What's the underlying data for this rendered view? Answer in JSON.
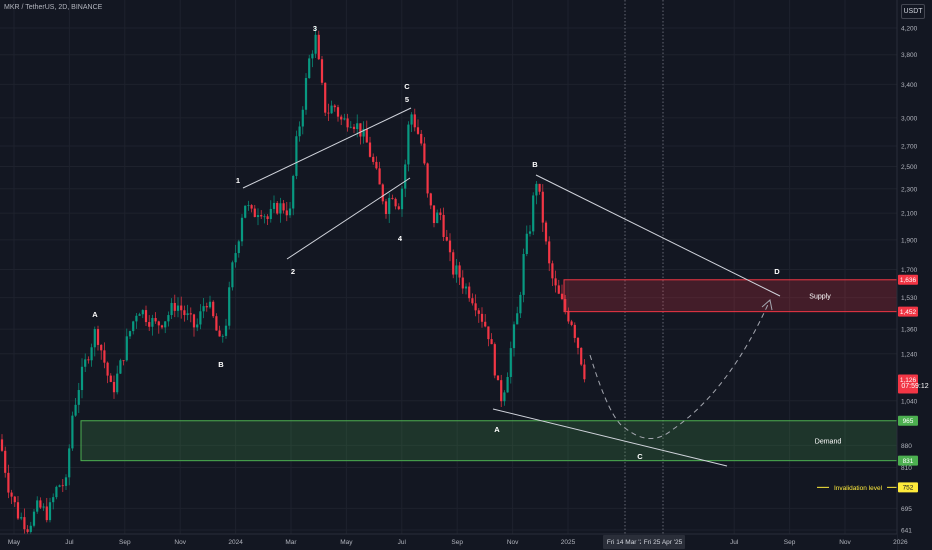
{
  "header": {
    "symbol_info": "MKR / TetherUS, 2D, BINANCE",
    "currency": "USDT"
  },
  "price_axis": {
    "ticks": [
      "4,200",
      "3,800",
      "3,400",
      "3,000",
      "2,700",
      "2,500",
      "2,300",
      "2,100",
      "1,900",
      "1,700",
      "1,530",
      "1,360",
      "1,240",
      "1,040",
      "880",
      "810",
      "695",
      "641"
    ],
    "tick_values": [
      4200,
      3800,
      3400,
      3000,
      2700,
      2500,
      2300,
      2100,
      1900,
      1700,
      1530,
      1360,
      1240,
      1040,
      880,
      810,
      695,
      641
    ],
    "badges": [
      {
        "label": "1,636",
        "value": 1636,
        "color": "#f23645",
        "text_color": "#ffffff"
      },
      {
        "label": "1,452",
        "value": 1452,
        "color": "#f23645",
        "text_color": "#ffffff"
      },
      {
        "label": "1,126",
        "value": 1126,
        "color": "#f23645",
        "text_color": "#ffffff"
      },
      {
        "label": "965",
        "value": 965,
        "color": "#4caf50",
        "text_color": "#ffffff"
      },
      {
        "label": "831",
        "value": 831,
        "color": "#4caf50",
        "text_color": "#ffffff"
      },
      {
        "label": "752",
        "value": 752,
        "color": "#ffeb3b",
        "text_color": "#131722"
      }
    ],
    "countdown": "07:59:12"
  },
  "time_axis": {
    "labels": [
      "May",
      "Jul",
      "Sep",
      "Nov",
      "2024",
      "Mar",
      "May",
      "Jul",
      "Sep",
      "Nov",
      "2025",
      "Jul",
      "Sep",
      "Nov",
      "2026"
    ],
    "highlighted": [
      "Fri 14 Mar '2",
      "Fri 25 Apr '25"
    ]
  },
  "zones": {
    "supply": {
      "label": "Supply",
      "top": 1636,
      "bottom": 1452,
      "color": "#f23645"
    },
    "demand": {
      "label": "Demand",
      "top": 965,
      "bottom": 831,
      "color": "#4caf50"
    },
    "invalidation": {
      "label": "Invalidation level",
      "value": 752,
      "color": "#ffeb3b"
    }
  },
  "wave_labels": {
    "A_first": "A",
    "B_first": "B",
    "w1": "1",
    "w2": "2",
    "w3": "3",
    "w4": "4",
    "w5": "5",
    "C_top": "C",
    "A_second": "A",
    "B_second": "B",
    "C_projected": "C",
    "D_projected": "D"
  },
  "chart_data": {
    "type": "candlestick",
    "symbol": "MKR / TetherUS",
    "interval": "2D",
    "exchange": "BINANCE",
    "y_scale": "log",
    "ylim": [
      641,
      4200
    ],
    "last_price": 1126,
    "key_points": [
      {
        "label": "A",
        "date": "2023-08",
        "price": 1350
      },
      {
        "label": "B",
        "date": "2023-12",
        "price": 1280
      },
      {
        "label": "1",
        "date": "2024-01",
        "price": 2250
      },
      {
        "label": "2",
        "date": "2024-02",
        "price": 1750
      },
      {
        "label": "3",
        "date": "2024-03",
        "price": 4100
      },
      {
        "label": "4",
        "date": "2024-07",
        "price": 2000
      },
      {
        "label": "5",
        "date": "2024-07",
        "price": 3150
      },
      {
        "label": "A",
        "date": "2024-11",
        "price": 1000
      },
      {
        "label": "B",
        "date": "2024-12",
        "price": 2450
      },
      {
        "label": "C",
        "date": "2025-04",
        "price": 900
      },
      {
        "label": "D",
        "date": "2025-08",
        "price": 1600
      }
    ]
  }
}
